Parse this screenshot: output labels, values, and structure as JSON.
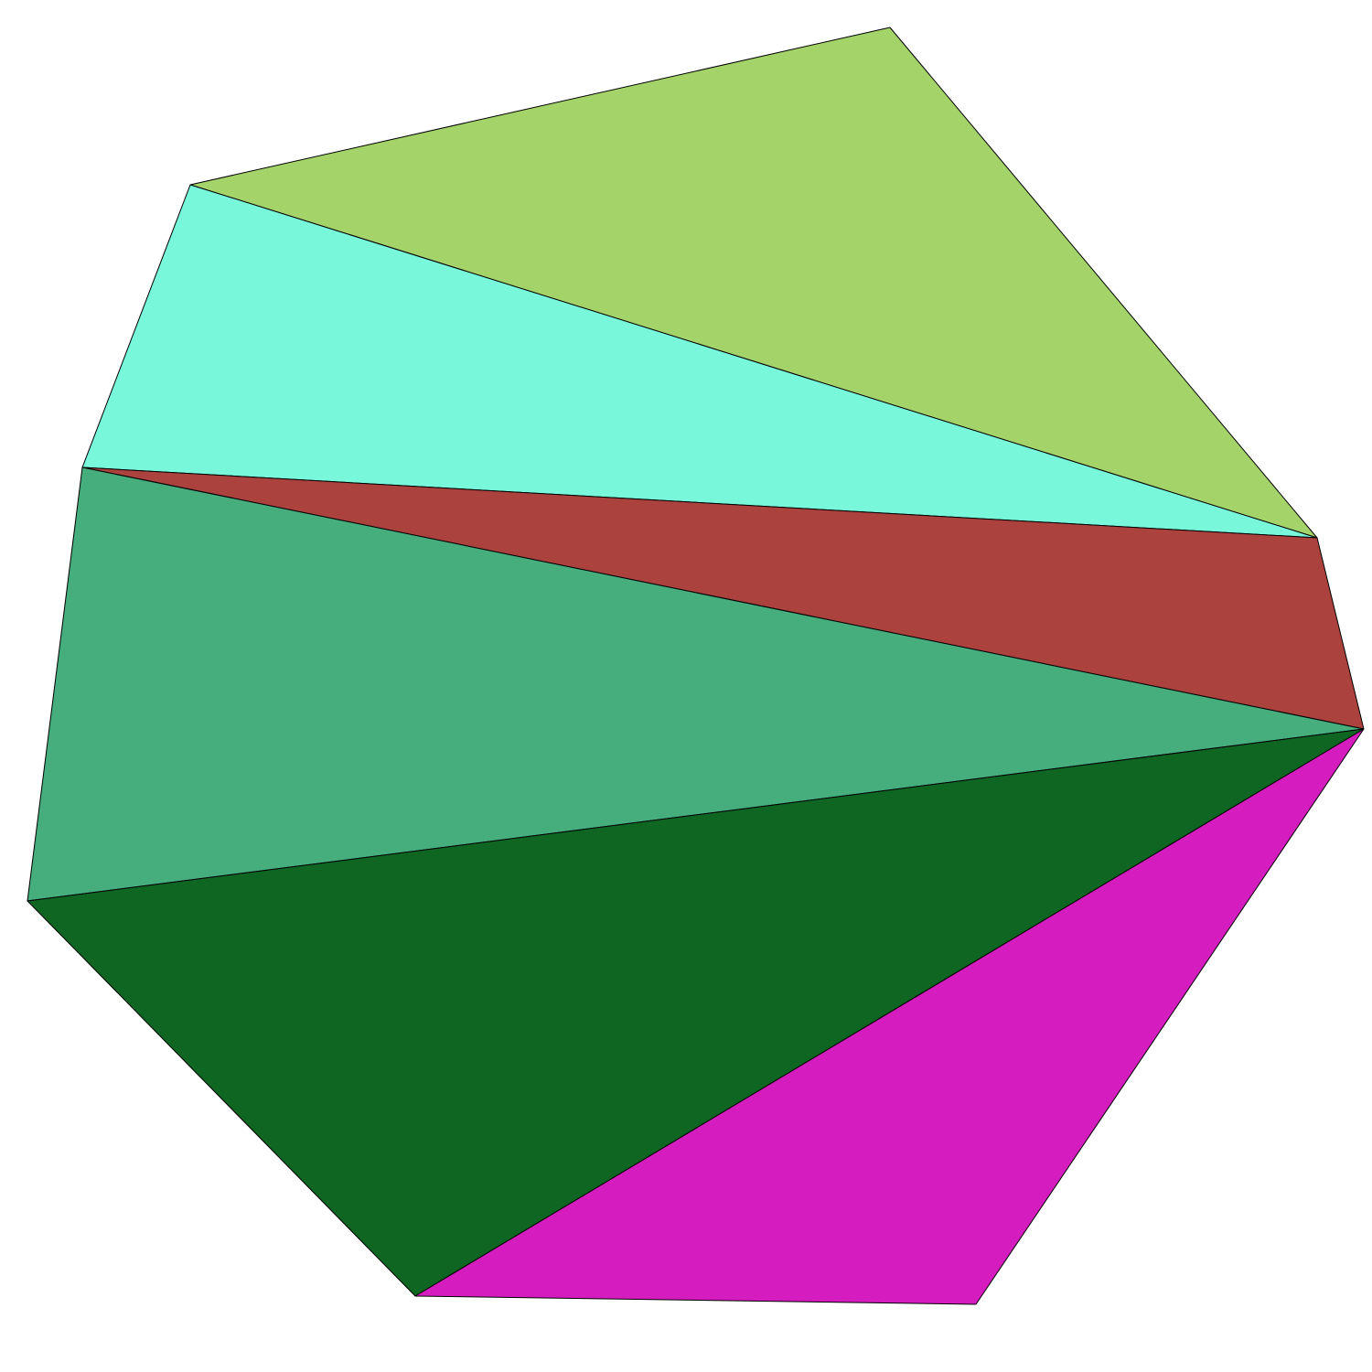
{
  "figure": {
    "description_type": "triangulated-polygon",
    "background_color": "#ffffff",
    "edge_color": "#000000",
    "triangles": [
      {
        "name": "light-green",
        "color": "#a3d369"
      },
      {
        "name": "aquamarine",
        "color": "#79f7db"
      },
      {
        "name": "brick-red",
        "color": "#ab423d"
      },
      {
        "name": "sea-green",
        "color": "#46ad7d"
      },
      {
        "name": "dark-green",
        "color": "#0f6622"
      },
      {
        "name": "magenta",
        "color": "#d51cbf"
      }
    ]
  }
}
